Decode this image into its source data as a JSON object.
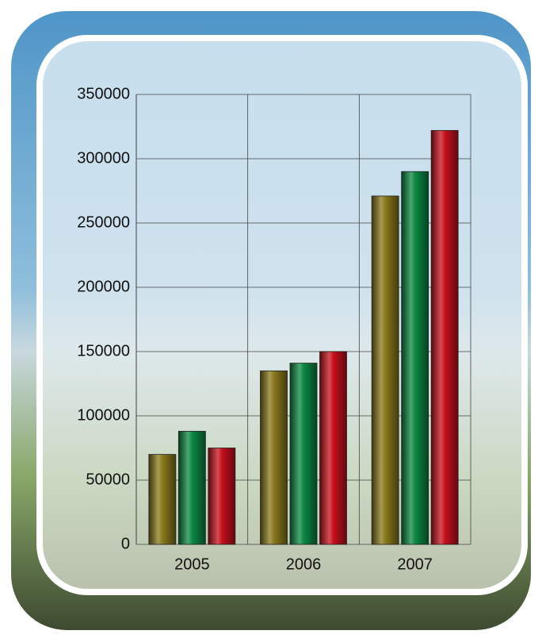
{
  "chart_data": {
    "type": "bar",
    "categories": [
      "2005",
      "2006",
      "2007"
    ],
    "series": [
      {
        "color": "#8a7a1c",
        "values": [
          70000,
          135000,
          271000
        ]
      },
      {
        "color": "#0b8a44",
        "values": [
          88000,
          141000,
          290000
        ]
      },
      {
        "color": "#c8101c",
        "values": [
          75000,
          150000,
          322000
        ]
      }
    ],
    "ylim": [
      0,
      350000
    ],
    "yticks": [
      0,
      50000,
      100000,
      150000,
      200000,
      250000,
      300000,
      350000
    ],
    "grid": true
  }
}
